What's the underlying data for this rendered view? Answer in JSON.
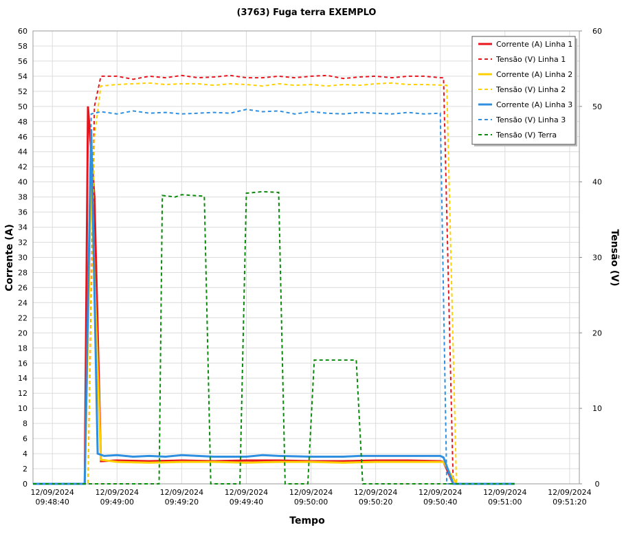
{
  "chart_data": {
    "type": "line",
    "title": "(3763) Fuga terra EXEMPLO",
    "x_label": "Tempo",
    "y_label": "Corrente (A)",
    "y2_label": "Tensão (V)",
    "xlim": [
      "12/09/2024 09:48:34",
      "12/09/2024 09:51:23"
    ],
    "xticks": [
      "12/09/2024 09:48:40",
      "12/09/2024 09:49:00",
      "12/09/2024 09:49:20",
      "12/09/2024 09:49:40",
      "12/09/2024 09:50:00",
      "12/09/2024 09:50:20",
      "12/09/2024 09:50:40",
      "12/09/2024 09:51:00",
      "12/09/2024 09:51:20"
    ],
    "ylim": [
      0,
      60
    ],
    "yticks": [
      0,
      2,
      4,
      6,
      8,
      10,
      12,
      14,
      16,
      18,
      20,
      22,
      24,
      26,
      28,
      30,
      32,
      34,
      36,
      38,
      40,
      42,
      44,
      46,
      48,
      50,
      52,
      54,
      56,
      58,
      60
    ],
    "y2lim": [
      0,
      60
    ],
    "y2ticks": [
      0,
      10,
      20,
      30,
      40,
      50,
      60
    ],
    "grid": true,
    "legend": "top-right",
    "series": [
      {
        "name": "Corrente (A) Linha 1",
        "color": "#e8141c",
        "line_style": "solid",
        "x": [
          "09:48:34",
          "09:48:50",
          "09:48:51",
          "09:48:53",
          "09:48:55",
          "09:49:00",
          "09:49:10",
          "09:49:20",
          "09:49:30",
          "09:49:40",
          "09:49:50",
          "09:50:00",
          "09:50:10",
          "09:50:20",
          "09:50:30",
          "09:50:40",
          "09:50:41",
          "09:50:44",
          "09:51:03"
        ],
        "values": [
          0,
          0,
          50,
          38,
          3,
          3.1,
          3,
          3.1,
          3,
          3.1,
          3.1,
          3,
          3,
          3.1,
          3.1,
          3,
          2.9,
          0,
          0
        ]
      },
      {
        "name": "Tensão (V) Linha 1",
        "color": "#e8141c",
        "line_style": "dashed",
        "axis": "y2",
        "x": [
          "09:48:34",
          "09:48:51",
          "09:48:53",
          "09:48:55",
          "09:49:00",
          "09:49:05",
          "09:49:10",
          "09:49:15",
          "09:49:20",
          "09:49:25",
          "09:49:30",
          "09:49:35",
          "09:49:40",
          "09:49:45",
          "09:49:50",
          "09:49:55",
          "09:50:00",
          "09:50:05",
          "09:50:10",
          "09:50:15",
          "09:50:20",
          "09:50:25",
          "09:50:30",
          "09:50:35",
          "09:50:40",
          "09:50:41",
          "09:50:44",
          "09:51:03"
        ],
        "values": [
          0,
          0,
          50,
          54,
          54,
          53.6,
          54,
          53.8,
          54.1,
          53.8,
          53.9,
          54.1,
          53.8,
          53.8,
          54,
          53.8,
          54,
          54.1,
          53.7,
          53.9,
          54,
          53.8,
          54,
          54,
          53.8,
          53.8,
          0,
          0
        ]
      },
      {
        "name": "Corrente (A) Linha 2",
        "color": "#ffd000",
        "line_style": "solid",
        "x": [
          "09:48:34",
          "09:48:50",
          "09:48:52",
          "09:48:55",
          "09:49:00",
          "09:49:10",
          "09:49:20",
          "09:49:30",
          "09:49:40",
          "09:49:50",
          "09:50:00",
          "09:50:10",
          "09:50:20",
          "09:50:30",
          "09:50:41",
          "09:50:45",
          "09:51:03"
        ],
        "values": [
          0,
          0,
          40,
          3.2,
          2.9,
          2.8,
          2.9,
          2.9,
          2.8,
          2.9,
          2.9,
          2.8,
          2.9,
          2.9,
          2.9,
          0,
          0
        ]
      },
      {
        "name": "Tensão (V) Linha 2",
        "color": "#ffd000",
        "line_style": "dashed",
        "axis": "y2",
        "x": [
          "09:48:34",
          "09:48:51",
          "09:48:53",
          "09:48:55",
          "09:49:00",
          "09:49:05",
          "09:49:10",
          "09:49:15",
          "09:49:20",
          "09:49:25",
          "09:49:30",
          "09:49:35",
          "09:49:40",
          "09:49:45",
          "09:49:50",
          "09:49:55",
          "09:50:00",
          "09:50:05",
          "09:50:10",
          "09:50:15",
          "09:50:20",
          "09:50:25",
          "09:50:30",
          "09:50:35",
          "09:50:42",
          "09:50:45",
          "09:51:03"
        ],
        "values": [
          0,
          0,
          46,
          52.7,
          52.9,
          53,
          53.1,
          52.9,
          53,
          53,
          52.8,
          53,
          52.9,
          52.7,
          53,
          52.8,
          52.9,
          52.7,
          52.9,
          52.8,
          53,
          53.1,
          52.9,
          52.9,
          52.8,
          0,
          0
        ]
      },
      {
        "name": "Corrente (A) Linha 3",
        "color": "#2e8fe0",
        "line_style": "solid",
        "x": [
          "09:48:34",
          "09:48:50",
          "09:48:52",
          "09:48:54",
          "09:48:56",
          "09:49:00",
          "09:49:05",
          "09:49:10",
          "09:49:15",
          "09:49:20",
          "09:49:30",
          "09:49:40",
          "09:49:45",
          "09:49:50",
          "09:50:00",
          "09:50:10",
          "09:50:15",
          "09:50:20",
          "09:50:30",
          "09:50:40",
          "09:50:41",
          "09:50:44",
          "09:51:03"
        ],
        "values": [
          0,
          0,
          47,
          4,
          3.7,
          3.8,
          3.6,
          3.7,
          3.6,
          3.8,
          3.6,
          3.6,
          3.8,
          3.7,
          3.6,
          3.6,
          3.7,
          3.7,
          3.7,
          3.7,
          3.5,
          0,
          0
        ]
      },
      {
        "name": "Tensão (V) Linha 3",
        "color": "#2e8fe0",
        "line_style": "dashed",
        "axis": "y2",
        "x": [
          "09:48:34",
          "09:48:50",
          "09:48:52",
          "09:48:55",
          "09:49:00",
          "09:49:05",
          "09:49:10",
          "09:49:15",
          "09:49:20",
          "09:49:25",
          "09:49:30",
          "09:49:35",
          "09:49:40",
          "09:49:45",
          "09:49:50",
          "09:49:55",
          "09:50:00",
          "09:50:05",
          "09:50:10",
          "09:50:15",
          "09:50:20",
          "09:50:25",
          "09:50:30",
          "09:50:35",
          "09:50:40",
          "09:50:42",
          "09:51:03"
        ],
        "values": [
          0,
          0,
          49,
          49.3,
          49,
          49.4,
          49.1,
          49.2,
          49,
          49.1,
          49.2,
          49.1,
          49.6,
          49.3,
          49.4,
          49,
          49.3,
          49.1,
          49,
          49.2,
          49.1,
          49,
          49.2,
          49,
          49.1,
          0,
          0
        ]
      },
      {
        "name": "Tensão (V) Terra",
        "color": "#0a8a0a",
        "line_style": "dashed",
        "axis": "y2",
        "x": [
          "09:48:34",
          "09:49:13",
          "09:49:14",
          "09:49:18",
          "09:49:20",
          "09:49:27",
          "09:49:29",
          "09:49:38",
          "09:49:40",
          "09:49:45",
          "09:49:50",
          "09:49:52",
          "09:49:59",
          "09:50:01",
          "09:50:14",
          "09:50:16",
          "09:51:03"
        ],
        "values": [
          0,
          0,
          38.2,
          38,
          38.3,
          38.1,
          0,
          0,
          38.5,
          38.7,
          38.6,
          0,
          0,
          16.4,
          16.4,
          0,
          0
        ]
      }
    ]
  }
}
